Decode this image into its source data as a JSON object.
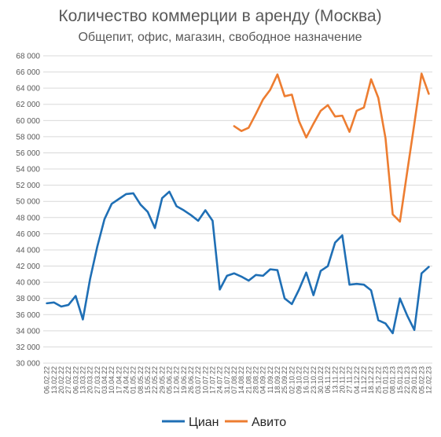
{
  "chart_data": {
    "type": "line",
    "title": "Количество коммерции в аренду (Москва)",
    "subtitle": "Общепит, офис, магазин, свободное назначение",
    "ylim": [
      30000,
      68000
    ],
    "yticks": [
      "30 000",
      "32 000",
      "34 000",
      "36 000",
      "38 000",
      "40 000",
      "42 000",
      "44 000",
      "46 000",
      "48 000",
      "50 000",
      "52 000",
      "54 000",
      "56 000",
      "58 000",
      "60 000",
      "62 000",
      "64 000",
      "66 000",
      "68 000"
    ],
    "x": [
      "06.02.22",
      "13.02.22",
      "20.02.22",
      "27.02.22",
      "06.03.22",
      "13.03.22",
      "20.03.22",
      "27.03.22",
      "03.04.22",
      "10.04.22",
      "17.04.22",
      "24.04.22",
      "01.05.22",
      "08.05.22",
      "15.05.22",
      "22.05.22",
      "29.05.22",
      "05.06.22",
      "12.06.22",
      "19.06.22",
      "26.06.22",
      "03.07.22",
      "10.07.22",
      "17.07.22",
      "24.07.22",
      "31.07.22",
      "07.08.22",
      "14.08.22",
      "21.08.22",
      "28.08.22",
      "04.09.22",
      "11.09.22",
      "18.09.22",
      "25.09.22",
      "02.10.22",
      "09.10.22",
      "16.10.22",
      "23.10.22",
      "30.10.22",
      "06.11.22",
      "13.11.22",
      "20.11.22",
      "27.11.22",
      "04.12.22",
      "11.12.22",
      "18.12.22",
      "25.12.22",
      "01.01.23",
      "08.01.23",
      "15.01.23",
      "22.01.23",
      "29.01.23",
      "05.02.23",
      "12.02.23"
    ],
    "series": [
      {
        "name": "Циан",
        "color": "#1f6fb5",
        "values": [
          37400,
          37500,
          37000,
          37200,
          38300,
          35400,
          40400,
          44400,
          47800,
          49700,
          50300,
          50900,
          51000,
          49600,
          48700,
          46700,
          50400,
          51200,
          49400,
          48900,
          48300,
          47600,
          48900,
          47600,
          39100,
          40800,
          41100,
          40700,
          40200,
          40900,
          40800,
          41600,
          41500,
          38000,
          37300,
          39100,
          41200,
          38400,
          41400,
          42000,
          44900,
          45800,
          39700,
          39800,
          39700,
          39000,
          35300,
          34900,
          33700,
          38000,
          35900,
          34100,
          41100,
          41900
        ]
      },
      {
        "name": "Авито",
        "color": "#ed7d31",
        "values": [
          null,
          null,
          null,
          null,
          null,
          null,
          null,
          null,
          null,
          null,
          null,
          null,
          null,
          null,
          null,
          null,
          null,
          null,
          null,
          null,
          null,
          null,
          null,
          null,
          null,
          null,
          59300,
          58700,
          59100,
          60800,
          62600,
          63800,
          65700,
          63000,
          63200,
          59900,
          57900,
          59600,
          61200,
          61900,
          60500,
          60600,
          58600,
          61200,
          61600,
          65100,
          62800,
          57800,
          48400,
          47500,
          53600,
          59600,
          65800,
          63300
        ]
      }
    ],
    "legend_position": "bottom",
    "grid": true
  }
}
